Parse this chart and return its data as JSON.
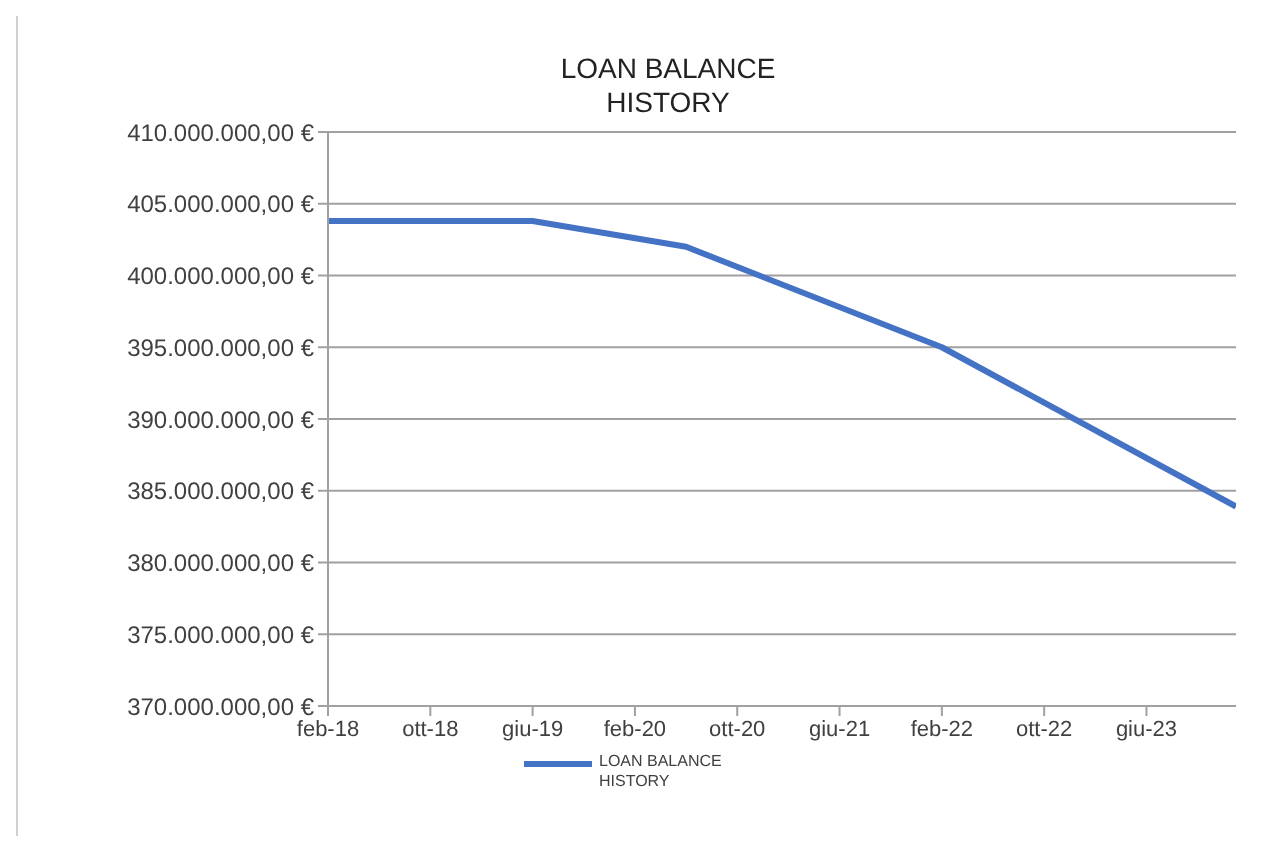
{
  "chart_data": {
    "type": "line",
    "title": "LOAN BALANCE HISTORY",
    "x": [
      "2018-02",
      "2019-06",
      "2020-06",
      "2022-02",
      "2024-01"
    ],
    "series": [
      {
        "name": "LOAN BALANCE HISTORY",
        "color": "#4472c4",
        "values": [
          403800000,
          403800000,
          402000000,
          395000000,
          383900000
        ]
      }
    ],
    "xlim": [
      "2018-02",
      "2024-01"
    ],
    "xticks": [
      {
        "value": "2018-02",
        "label": "feb-18"
      },
      {
        "value": "2018-10",
        "label": "ott-18"
      },
      {
        "value": "2019-06",
        "label": "giu-19"
      },
      {
        "value": "2020-02",
        "label": "feb-20"
      },
      {
        "value": "2020-10",
        "label": "ott-20"
      },
      {
        "value": "2021-06",
        "label": "giu-21"
      },
      {
        "value": "2022-02",
        "label": "feb-22"
      },
      {
        "value": "2022-10",
        "label": "ott-22"
      },
      {
        "value": "2023-06",
        "label": "giu-23"
      }
    ],
    "ylim": [
      370000000,
      410000000
    ],
    "yticks": [
      {
        "value": 370000000,
        "label": "370.000.000,00 €"
      },
      {
        "value": 375000000,
        "label": "375.000.000,00 €"
      },
      {
        "value": 380000000,
        "label": "380.000.000,00 €"
      },
      {
        "value": 385000000,
        "label": "385.000.000,00 €"
      },
      {
        "value": 390000000,
        "label": "390.000.000,00 €"
      },
      {
        "value": 395000000,
        "label": "395.000.000,00 €"
      },
      {
        "value": 400000000,
        "label": "400.000.000,00 €"
      },
      {
        "value": 405000000,
        "label": "405.000.000,00 €"
      },
      {
        "value": 410000000,
        "label": "410.000.000,00 €"
      }
    ],
    "grid": "y",
    "legend": "bottom",
    "marker": "none",
    "line_style": "solid"
  }
}
